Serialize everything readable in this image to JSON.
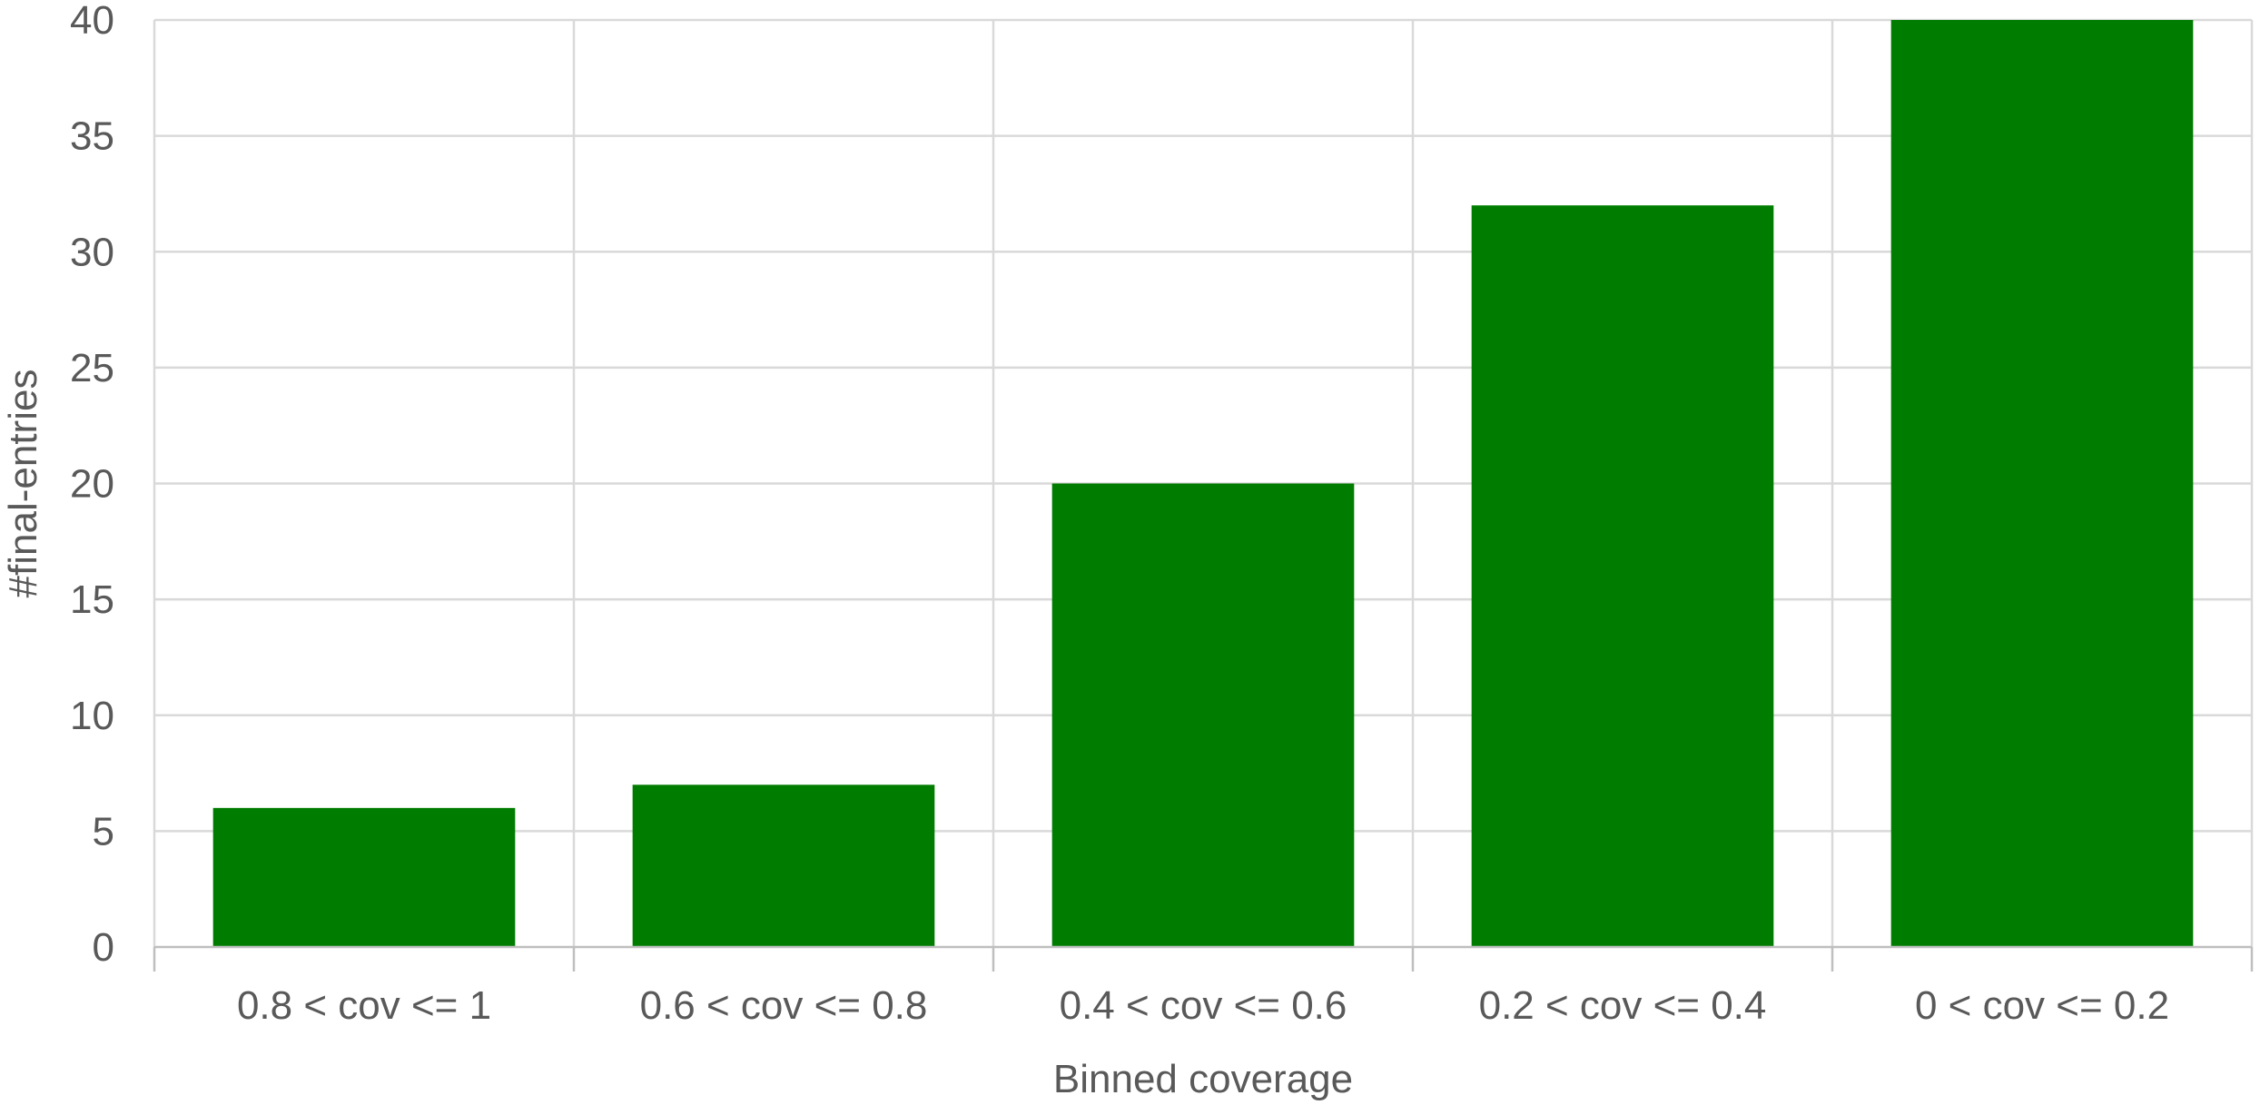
{
  "chart_data": {
    "type": "bar",
    "categories": [
      "0.8 < cov <= 1",
      "0.6 < cov <= 0.8",
      "0.4 < cov <= 0.6",
      "0.2 < cov <= 0.4",
      "0 < cov <= 0.2"
    ],
    "values": [
      6,
      7,
      20,
      32,
      40
    ],
    "xlabel": "Binned coverage",
    "ylabel": "#final-entries",
    "ylim": [
      0,
      40
    ],
    "yticks": [
      0,
      5,
      10,
      15,
      20,
      25,
      30,
      35,
      40
    ],
    "grid": true,
    "bar_color": "#007c00"
  }
}
